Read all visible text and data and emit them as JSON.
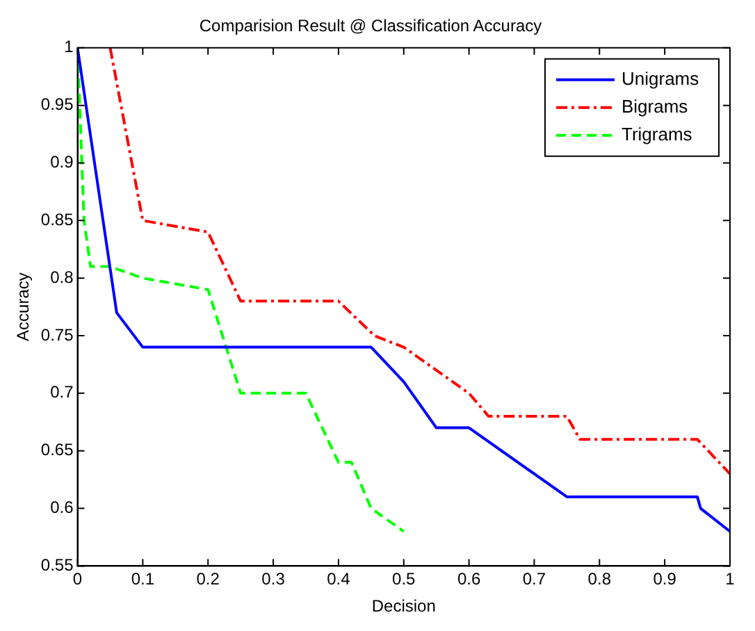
{
  "chart_data": {
    "type": "line",
    "title": "Comparision Result @ Classification Accuracy",
    "xlabel": "Decision",
    "ylabel": "Accuracy",
    "xlim": [
      0,
      1
    ],
    "xticks": [
      0,
      0.1,
      0.2,
      0.3,
      0.4,
      0.5,
      0.6,
      0.7,
      0.8,
      0.9,
      1
    ],
    "ylim": [
      0.55,
      1
    ],
    "yticks": [
      0.55,
      0.6,
      0.65,
      0.7,
      0.75,
      0.8,
      0.85,
      0.9,
      0.95,
      1
    ],
    "legend": "top right",
    "grid": false,
    "marker": "none",
    "series": [
      {
        "name": "Unigrams",
        "color": "#0000ff",
        "line_style": "solid",
        "x": [
          0,
          0.06,
          0.1,
          0.45,
          0.5,
          0.55,
          0.6,
          0.75,
          0.95,
          0.955,
          1
        ],
        "values": [
          1,
          0.77,
          0.74,
          0.74,
          0.71,
          0.67,
          0.67,
          0.61,
          0.61,
          0.6,
          0.58
        ]
      },
      {
        "name": "Bigrams",
        "color": "#ff0000",
        "line_style": "dashdot",
        "x": [
          0.05,
          0.1,
          0.2,
          0.25,
          0.4,
          0.455,
          0.5,
          0.6,
          0.63,
          0.75,
          0.77,
          0.95,
          1
        ],
        "values": [
          1,
          0.85,
          0.84,
          0.78,
          0.78,
          0.75,
          0.74,
          0.7,
          0.68,
          0.68,
          0.66,
          0.66,
          0.63
        ]
      },
      {
        "name": "Trigrams",
        "color": "#00ff00",
        "line_style": "dashed",
        "x": [
          0,
          0.01,
          0.02,
          0.05,
          0.1,
          0.2,
          0.25,
          0.35,
          0.4,
          0.42,
          0.45,
          0.5
        ],
        "values": [
          1,
          0.85,
          0.81,
          0.81,
          0.8,
          0.79,
          0.7,
          0.7,
          0.64,
          0.64,
          0.6,
          0.58
        ]
      }
    ]
  }
}
